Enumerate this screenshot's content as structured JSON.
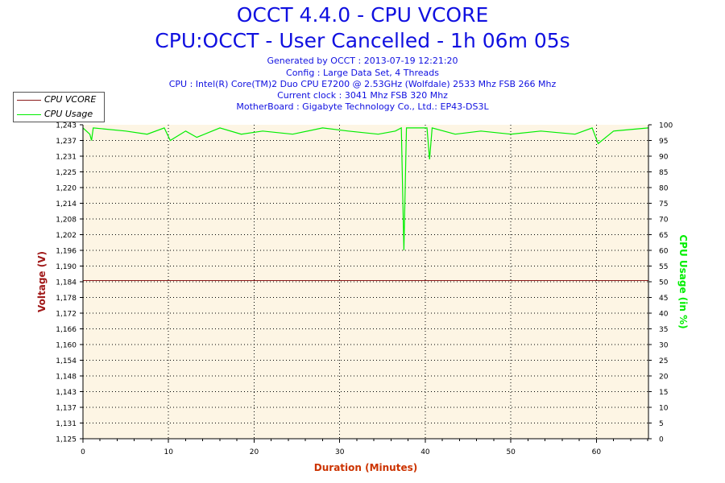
{
  "header": {
    "title": "OCCT 4.4.0 - CPU VCORE",
    "subtitle": "CPU:OCCT - User Cancelled - 1h 06m 05s",
    "info_lines": [
      "Generated by OCCT : 2013-07-19 12:21:20",
      "Config : Large Data Set, 4 Threads",
      "CPU : Intel(R) Core(TM)2 Duo CPU E7200 @ 2.53GHz (Wolfdale) 2533 Mhz FSB 266 Mhz",
      "Current clock : 3041 Mhz FSB 320 Mhz",
      "MotherBoard : Gigabyte Technology Co., Ltd.: EP43-DS3L"
    ]
  },
  "legend": {
    "items": [
      {
        "label": "CPU VCORE",
        "color": "#8b1a1a"
      },
      {
        "label": "CPU Usage",
        "color": "#00ee00"
      }
    ]
  },
  "colors": {
    "plot_background": "#fdf5e4",
    "title": "#1010e0",
    "voltage_axis": "#a01818",
    "usage_axis": "#00ee00",
    "xlabel": "#cc3300"
  },
  "chart_data": {
    "type": "line",
    "xlabel": "Duration (Minutes)",
    "ylabel": "Voltage (V)",
    "y2label": "CPU Usage (in %)",
    "xlim": [
      0,
      66.08
    ],
    "ylim": [
      1.125,
      1.243
    ],
    "y2lim": [
      0,
      100
    ],
    "x_ticks": [
      "0",
      "10",
      "20",
      "30",
      "40",
      "50",
      "60"
    ],
    "y_ticks": [
      "1,125",
      "1,131",
      "1,137",
      "1,143",
      "1,148",
      "1,154",
      "1,160",
      "1,166",
      "1,172",
      "1,178",
      "1,184",
      "1,190",
      "1,196",
      "1,202",
      "1,208",
      "1,214",
      "1,220",
      "1,225",
      "1,231",
      "1,237",
      "1,243"
    ],
    "y2_ticks": [
      "0",
      "5",
      "10",
      "15",
      "20",
      "25",
      "30",
      "35",
      "40",
      "45",
      "50",
      "55",
      "60",
      "65",
      "70",
      "75",
      "80",
      "85",
      "90",
      "95",
      "100"
    ],
    "grid": true,
    "legend_position": "top-left",
    "series": [
      {
        "name": "CPU VCORE",
        "axis": "left",
        "x": [
          0,
          66.08
        ],
        "values": [
          1.1845,
          1.1845
        ]
      },
      {
        "name": "CPU Usage",
        "axis": "right",
        "x": [
          0,
          0.8,
          1.0,
          1.2,
          5.0,
          7.5,
          9.5,
          10.2,
          12.0,
          13.3,
          16.0,
          18.5,
          21.0,
          24.5,
          28.0,
          31.0,
          34.5,
          36.5,
          37.2,
          37.5,
          37.8,
          40.2,
          40.5,
          40.8,
          43.5,
          46.5,
          50.0,
          53.5,
          57.5,
          59.5,
          60.2,
          62.0,
          66.08
        ],
        "values": [
          99,
          97,
          95,
          99,
          98,
          97,
          99,
          95,
          98,
          96,
          99,
          97,
          98,
          97,
          99,
          98,
          97,
          98,
          99,
          60,
          99,
          99,
          89,
          99,
          97,
          98,
          97,
          98,
          97,
          99,
          94,
          98,
          99
        ]
      }
    ]
  }
}
